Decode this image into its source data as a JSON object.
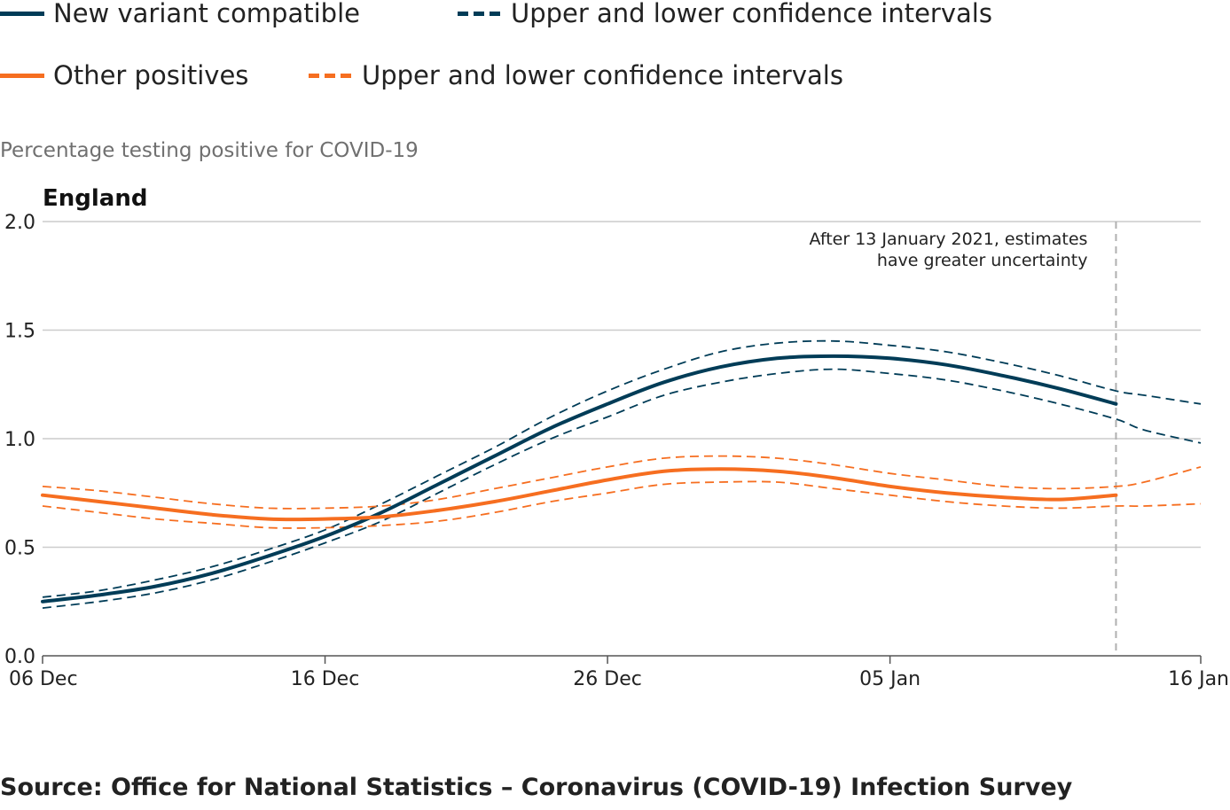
{
  "legend": {
    "items": [
      {
        "label": "New variant compatible",
        "style": "solid",
        "color": "#003c57"
      },
      {
        "label": "Upper and lower confidence intervals",
        "style": "dashed",
        "color": "#003c57"
      },
      {
        "label": "Other positives",
        "style": "solid",
        "color": "#f66e20"
      },
      {
        "label": "Upper and lower confidence intervals",
        "style": "dashed",
        "color": "#f66e20"
      }
    ]
  },
  "subtitle": "Percentage testing positive for COVID-19",
  "source": "Source: Office for National Statistics – Coronavirus (COVID-19) Infection Survey",
  "chart_data": {
    "type": "line",
    "title": "England",
    "xlabel": "",
    "ylabel": "Percentage testing positive for COVID-19",
    "ylim": [
      0,
      2.0
    ],
    "y_ticks": [
      0.0,
      0.5,
      1.0,
      1.5,
      2.0
    ],
    "y_tick_labels": [
      "0.0",
      "0.5",
      "1.0",
      "1.5",
      "2.0"
    ],
    "x_range": [
      "2020-12-06",
      "2021-01-16"
    ],
    "x_ticks": [
      "2020-12-06",
      "2020-12-16",
      "2020-12-26",
      "2021-01-05",
      "2021-01-16"
    ],
    "x_tick_labels": [
      "06 Dec",
      "16 Dec",
      "26 Dec",
      "05 Jan",
      "16 Jan"
    ],
    "grid": true,
    "legend_position": "top",
    "annotation": {
      "date": "2021-01-13",
      "lines": [
        "After 13 January 2021, estimates",
        "have greater uncertainty"
      ]
    },
    "colors": {
      "new_variant": "#003c57",
      "other": "#f66e20",
      "grid": "#cccccc",
      "annotation_line": "#b0b0b0"
    },
    "series": [
      {
        "name": "New variant compatible",
        "style": "solid",
        "x": [
          "2020-12-06",
          "2020-12-08",
          "2020-12-10",
          "2020-12-12",
          "2020-12-14",
          "2020-12-16",
          "2020-12-18",
          "2020-12-20",
          "2020-12-22",
          "2020-12-24",
          "2020-12-26",
          "2020-12-28",
          "2020-12-30",
          "2021-01-01",
          "2021-01-03",
          "2021-01-05",
          "2021-01-07",
          "2021-01-09",
          "2021-01-11",
          "2021-01-13"
        ],
        "y": [
          0.25,
          0.28,
          0.32,
          0.38,
          0.46,
          0.55,
          0.66,
          0.79,
          0.92,
          1.05,
          1.16,
          1.26,
          1.33,
          1.37,
          1.38,
          1.37,
          1.34,
          1.29,
          1.23,
          1.16
        ]
      },
      {
        "name": "Upper and lower confidence intervals",
        "style": "dashed",
        "x": [
          "2020-12-06",
          "2020-12-08",
          "2020-12-10",
          "2020-12-12",
          "2020-12-14",
          "2020-12-16",
          "2020-12-18",
          "2020-12-20",
          "2020-12-22",
          "2020-12-24",
          "2020-12-26",
          "2020-12-28",
          "2020-12-30",
          "2021-01-01",
          "2021-01-03",
          "2021-01-05",
          "2021-01-07",
          "2021-01-09",
          "2021-01-11",
          "2021-01-13",
          "2021-01-14",
          "2021-01-16"
        ],
        "y": [
          0.27,
          0.3,
          0.35,
          0.41,
          0.49,
          0.58,
          0.7,
          0.83,
          0.96,
          1.1,
          1.22,
          1.32,
          1.4,
          1.44,
          1.45,
          1.43,
          1.4,
          1.35,
          1.29,
          1.22,
          1.2,
          1.16
        ]
      },
      {
        "style": "dashed",
        "x": [
          "2020-12-06",
          "2020-12-08",
          "2020-12-10",
          "2020-12-12",
          "2020-12-14",
          "2020-12-16",
          "2020-12-18",
          "2020-12-20",
          "2020-12-22",
          "2020-12-24",
          "2020-12-26",
          "2020-12-28",
          "2020-12-30",
          "2021-01-01",
          "2021-01-03",
          "2021-01-05",
          "2021-01-07",
          "2021-01-09",
          "2021-01-11",
          "2021-01-13",
          "2021-01-14",
          "2021-01-16"
        ],
        "y": [
          0.22,
          0.25,
          0.29,
          0.35,
          0.43,
          0.52,
          0.62,
          0.75,
          0.88,
          1.0,
          1.1,
          1.2,
          1.26,
          1.3,
          1.32,
          1.3,
          1.27,
          1.22,
          1.16,
          1.09,
          1.04,
          0.98
        ]
      },
      {
        "name": "Other positives",
        "style": "solid",
        "x": [
          "2020-12-06",
          "2020-12-08",
          "2020-12-10",
          "2020-12-12",
          "2020-12-14",
          "2020-12-16",
          "2020-12-18",
          "2020-12-20",
          "2020-12-22",
          "2020-12-24",
          "2020-12-26",
          "2020-12-28",
          "2020-12-30",
          "2021-01-01",
          "2021-01-03",
          "2021-01-05",
          "2021-01-07",
          "2021-01-09",
          "2021-01-11",
          "2021-01-13"
        ],
        "y": [
          0.74,
          0.71,
          0.68,
          0.65,
          0.63,
          0.63,
          0.64,
          0.67,
          0.71,
          0.76,
          0.81,
          0.85,
          0.86,
          0.85,
          0.82,
          0.78,
          0.75,
          0.73,
          0.72,
          0.74
        ]
      },
      {
        "name": "Upper and lower confidence intervals",
        "style": "dashed",
        "x": [
          "2020-12-06",
          "2020-12-08",
          "2020-12-10",
          "2020-12-12",
          "2020-12-14",
          "2020-12-16",
          "2020-12-18",
          "2020-12-20",
          "2020-12-22",
          "2020-12-24",
          "2020-12-26",
          "2020-12-28",
          "2020-12-30",
          "2021-01-01",
          "2021-01-03",
          "2021-01-05",
          "2021-01-07",
          "2021-01-09",
          "2021-01-11",
          "2021-01-13",
          "2021-01-14",
          "2021-01-16"
        ],
        "y": [
          0.78,
          0.76,
          0.73,
          0.7,
          0.68,
          0.68,
          0.69,
          0.72,
          0.77,
          0.82,
          0.87,
          0.91,
          0.92,
          0.91,
          0.88,
          0.84,
          0.81,
          0.78,
          0.77,
          0.78,
          0.8,
          0.87
        ]
      },
      {
        "style": "dashed",
        "x": [
          "2020-12-06",
          "2020-12-08",
          "2020-12-10",
          "2020-12-12",
          "2020-12-14",
          "2020-12-16",
          "2020-12-18",
          "2020-12-20",
          "2020-12-22",
          "2020-12-24",
          "2020-12-26",
          "2020-12-28",
          "2020-12-30",
          "2021-01-01",
          "2021-01-03",
          "2021-01-05",
          "2021-01-07",
          "2021-01-09",
          "2021-01-11",
          "2021-01-13",
          "2021-01-14",
          "2021-01-16"
        ],
        "y": [
          0.69,
          0.66,
          0.63,
          0.61,
          0.59,
          0.59,
          0.6,
          0.62,
          0.66,
          0.71,
          0.75,
          0.79,
          0.8,
          0.8,
          0.77,
          0.74,
          0.71,
          0.69,
          0.68,
          0.69,
          0.69,
          0.7
        ]
      }
    ]
  }
}
